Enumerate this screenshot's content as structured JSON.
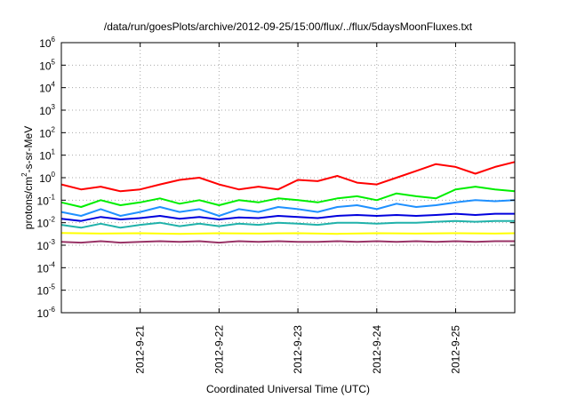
{
  "chart_data": {
    "type": "line",
    "title": "/data/run/goesPlots/archive/2012-09-25/15:00/flux/../flux/5daysMoonFluxes.txt",
    "xlabel": "Coordinated Universal Time (UTC)",
    "ylabel": {
      "base": "protons/cm",
      "sup": "2",
      "rest": "-s-sr-MeV"
    },
    "yscale": "log",
    "ylim": [
      1e-06,
      1000000.0
    ],
    "y_ticks": [
      {
        "base": "10",
        "exp": "-6",
        "value": 1e-06
      },
      {
        "base": "10",
        "exp": "-5",
        "value": 1e-05
      },
      {
        "base": "10",
        "exp": "-4",
        "value": 0.0001
      },
      {
        "base": "10",
        "exp": "-3",
        "value": 0.001
      },
      {
        "base": "10",
        "exp": "-2",
        "value": 0.01
      },
      {
        "base": "10",
        "exp": "-1",
        "value": 0.1
      },
      {
        "base": "10",
        "exp": "0",
        "value": 1
      },
      {
        "base": "10",
        "exp": "1",
        "value": 10
      },
      {
        "base": "10",
        "exp": "2",
        "value": 100
      },
      {
        "base": "10",
        "exp": "3",
        "value": 1000
      },
      {
        "base": "10",
        "exp": "4",
        "value": 10000
      },
      {
        "base": "10",
        "exp": "5",
        "value": 100000
      },
      {
        "base": "10",
        "exp": "6",
        "value": 1000000
      }
    ],
    "xlim": [
      "2012-09-20T00:00",
      "2012-09-25T18:00"
    ],
    "x_ticks": [
      {
        "label": "2012-9-21",
        "value": "2012-09-21T00:00"
      },
      {
        "label": "2012-9-22",
        "value": "2012-09-22T00:00"
      },
      {
        "label": "2012-9-23",
        "value": "2012-09-23T00:00"
      },
      {
        "label": "2012-9-24",
        "value": "2012-09-24T00:00"
      },
      {
        "label": "2012-9-25",
        "value": "2012-09-25T00:00"
      }
    ],
    "grid": true,
    "series": [
      {
        "color": "#ff0000",
        "x": [
          "2012-09-20T00:00",
          "2012-09-20T06:00",
          "2012-09-20T12:00",
          "2012-09-20T18:00",
          "2012-09-21T00:00",
          "2012-09-21T06:00",
          "2012-09-21T12:00",
          "2012-09-21T18:00",
          "2012-09-22T00:00",
          "2012-09-22T06:00",
          "2012-09-22T12:00",
          "2012-09-22T18:00",
          "2012-09-23T00:00",
          "2012-09-23T06:00",
          "2012-09-23T12:00",
          "2012-09-23T18:00",
          "2012-09-24T00:00",
          "2012-09-24T06:00",
          "2012-09-24T12:00",
          "2012-09-24T18:00",
          "2012-09-25T00:00",
          "2012-09-25T06:00",
          "2012-09-25T12:00",
          "2012-09-25T18:00"
        ],
        "y": [
          0.5,
          0.3,
          0.4,
          0.25,
          0.3,
          0.5,
          0.8,
          1.0,
          0.5,
          0.3,
          0.4,
          0.3,
          0.8,
          0.7,
          1.2,
          0.6,
          0.5,
          1.0,
          2.0,
          4.0,
          3.0,
          1.5,
          3.0,
          5.0
        ]
      },
      {
        "color": "#00ee00",
        "x": [
          "2012-09-20T00:00",
          "2012-09-20T06:00",
          "2012-09-20T12:00",
          "2012-09-20T18:00",
          "2012-09-21T00:00",
          "2012-09-21T06:00",
          "2012-09-21T12:00",
          "2012-09-21T18:00",
          "2012-09-22T00:00",
          "2012-09-22T06:00",
          "2012-09-22T12:00",
          "2012-09-22T18:00",
          "2012-09-23T00:00",
          "2012-09-23T06:00",
          "2012-09-23T12:00",
          "2012-09-23T18:00",
          "2012-09-24T00:00",
          "2012-09-24T06:00",
          "2012-09-24T12:00",
          "2012-09-24T18:00",
          "2012-09-25T00:00",
          "2012-09-25T06:00",
          "2012-09-25T12:00",
          "2012-09-25T18:00"
        ],
        "y": [
          0.08,
          0.05,
          0.1,
          0.06,
          0.08,
          0.12,
          0.07,
          0.1,
          0.06,
          0.1,
          0.08,
          0.12,
          0.1,
          0.08,
          0.12,
          0.15,
          0.1,
          0.2,
          0.15,
          0.12,
          0.3,
          0.4,
          0.3,
          0.25
        ]
      },
      {
        "color": "#1e90ff",
        "x": [
          "2012-09-20T00:00",
          "2012-09-20T06:00",
          "2012-09-20T12:00",
          "2012-09-20T18:00",
          "2012-09-21T00:00",
          "2012-09-21T06:00",
          "2012-09-21T12:00",
          "2012-09-21T18:00",
          "2012-09-22T00:00",
          "2012-09-22T06:00",
          "2012-09-22T12:00",
          "2012-09-22T18:00",
          "2012-09-23T00:00",
          "2012-09-23T06:00",
          "2012-09-23T12:00",
          "2012-09-23T18:00",
          "2012-09-24T00:00",
          "2012-09-24T06:00",
          "2012-09-24T12:00",
          "2012-09-24T18:00",
          "2012-09-25T00:00",
          "2012-09-25T06:00",
          "2012-09-25T12:00",
          "2012-09-25T18:00"
        ],
        "y": [
          0.03,
          0.02,
          0.04,
          0.02,
          0.03,
          0.05,
          0.03,
          0.04,
          0.02,
          0.04,
          0.03,
          0.05,
          0.04,
          0.03,
          0.05,
          0.06,
          0.04,
          0.07,
          0.05,
          0.06,
          0.08,
          0.1,
          0.09,
          0.1
        ]
      },
      {
        "color": "#0000dd",
        "x": [
          "2012-09-20T00:00",
          "2012-09-20T06:00",
          "2012-09-20T12:00",
          "2012-09-20T18:00",
          "2012-09-21T00:00",
          "2012-09-21T06:00",
          "2012-09-21T12:00",
          "2012-09-21T18:00",
          "2012-09-22T00:00",
          "2012-09-22T06:00",
          "2012-09-22T12:00",
          "2012-09-22T18:00",
          "2012-09-23T00:00",
          "2012-09-23T06:00",
          "2012-09-23T12:00",
          "2012-09-23T18:00",
          "2012-09-24T00:00",
          "2012-09-24T06:00",
          "2012-09-24T12:00",
          "2012-09-24T18:00",
          "2012-09-25T00:00",
          "2012-09-25T06:00",
          "2012-09-25T12:00",
          "2012-09-25T18:00"
        ],
        "y": [
          0.015,
          0.012,
          0.018,
          0.014,
          0.016,
          0.02,
          0.015,
          0.018,
          0.014,
          0.017,
          0.016,
          0.02,
          0.018,
          0.016,
          0.02,
          0.022,
          0.02,
          0.022,
          0.02,
          0.022,
          0.025,
          0.022,
          0.025,
          0.025
        ]
      },
      {
        "color": "#20b2aa",
        "x": [
          "2012-09-20T00:00",
          "2012-09-20T06:00",
          "2012-09-20T12:00",
          "2012-09-20T18:00",
          "2012-09-21T00:00",
          "2012-09-21T06:00",
          "2012-09-21T12:00",
          "2012-09-21T18:00",
          "2012-09-22T00:00",
          "2012-09-22T06:00",
          "2012-09-22T12:00",
          "2012-09-22T18:00",
          "2012-09-23T00:00",
          "2012-09-23T06:00",
          "2012-09-23T12:00",
          "2012-09-23T18:00",
          "2012-09-24T00:00",
          "2012-09-24T06:00",
          "2012-09-24T12:00",
          "2012-09-24T18:00",
          "2012-09-25T00:00",
          "2012-09-25T06:00",
          "2012-09-25T12:00",
          "2012-09-25T18:00"
        ],
        "y": [
          0.008,
          0.006,
          0.009,
          0.006,
          0.008,
          0.01,
          0.007,
          0.009,
          0.007,
          0.009,
          0.008,
          0.01,
          0.009,
          0.008,
          0.01,
          0.01,
          0.009,
          0.01,
          0.01,
          0.011,
          0.012,
          0.011,
          0.012,
          0.012
        ]
      },
      {
        "color": "#ffff00",
        "x": [
          "2012-09-20T00:00",
          "2012-09-20T12:00",
          "2012-09-21T00:00",
          "2012-09-21T12:00",
          "2012-09-22T00:00",
          "2012-09-22T12:00",
          "2012-09-23T00:00",
          "2012-09-23T12:00",
          "2012-09-24T00:00",
          "2012-09-24T12:00",
          "2012-09-25T00:00",
          "2012-09-25T12:00",
          "2012-09-25T18:00"
        ],
        "y": [
          0.0035,
          0.0033,
          0.0034,
          0.0032,
          0.0034,
          0.0033,
          0.0034,
          0.0032,
          0.0034,
          0.0033,
          0.0034,
          0.0033,
          0.0034
        ]
      },
      {
        "color": "#993366",
        "x": [
          "2012-09-20T00:00",
          "2012-09-20T06:00",
          "2012-09-20T12:00",
          "2012-09-20T18:00",
          "2012-09-21T00:00",
          "2012-09-21T06:00",
          "2012-09-21T12:00",
          "2012-09-21T18:00",
          "2012-09-22T00:00",
          "2012-09-22T06:00",
          "2012-09-22T12:00",
          "2012-09-22T18:00",
          "2012-09-23T00:00",
          "2012-09-23T06:00",
          "2012-09-23T12:00",
          "2012-09-23T18:00",
          "2012-09-24T00:00",
          "2012-09-24T06:00",
          "2012-09-24T12:00",
          "2012-09-24T18:00",
          "2012-09-25T00:00",
          "2012-09-25T06:00",
          "2012-09-25T12:00",
          "2012-09-25T18:00"
        ],
        "y": [
          0.0014,
          0.0013,
          0.0015,
          0.0013,
          0.0014,
          0.0015,
          0.0014,
          0.0015,
          0.0013,
          0.0015,
          0.0014,
          0.0015,
          0.0014,
          0.0014,
          0.0015,
          0.0014,
          0.0015,
          0.0014,
          0.0015,
          0.0014,
          0.0015,
          0.0014,
          0.0015,
          0.0015
        ]
      }
    ]
  }
}
